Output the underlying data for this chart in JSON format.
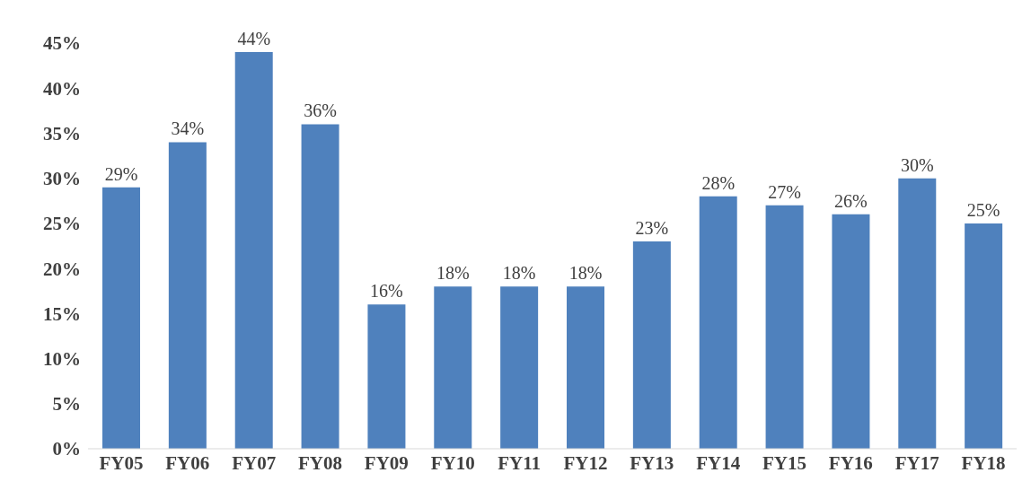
{
  "chart_data": {
    "type": "bar",
    "categories": [
      "FY05",
      "FY06",
      "FY07",
      "FY08",
      "FY09",
      "FY10",
      "FY11",
      "FY12",
      "FY13",
      "FY14",
      "FY15",
      "FY16",
      "FY17",
      "FY18"
    ],
    "values": [
      29,
      34,
      44,
      36,
      16,
      18,
      18,
      18,
      23,
      28,
      27,
      26,
      30,
      25
    ],
    "value_labels": [
      "29%",
      "34%",
      "44%",
      "36%",
      "16%",
      "18%",
      "18%",
      "18%",
      "23%",
      "28%",
      "27%",
      "26%",
      "30%",
      "25%"
    ],
    "color": "#4f81bd",
    "ylim": [
      0,
      45
    ],
    "yticks": [
      {
        "value": 0,
        "label": "0%"
      },
      {
        "value": 5,
        "label": "5%"
      },
      {
        "value": 10,
        "label": "10%"
      },
      {
        "value": 15,
        "label": "15%"
      },
      {
        "value": 20,
        "label": "20%"
      },
      {
        "value": 25,
        "label": "25%"
      },
      {
        "value": 30,
        "label": "30%"
      },
      {
        "value": 35,
        "label": "35%"
      },
      {
        "value": 40,
        "label": "40%"
      },
      {
        "value": 45,
        "label": "45%"
      }
    ],
    "grid": false
  }
}
